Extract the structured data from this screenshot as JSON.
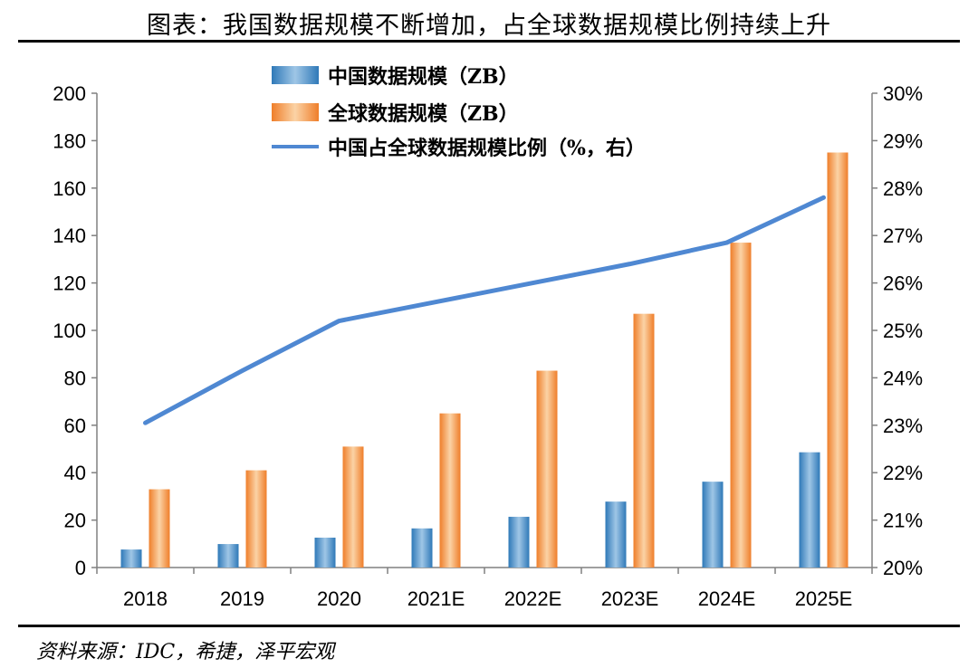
{
  "title": "图表：我国数据规模不断增加，占全球数据规模比例持续上升",
  "source": "资料来源：IDC，希捷，泽平宏观",
  "colors": {
    "china_bar_light": "#9fc6e6",
    "china_bar_dark": "#2f79b8",
    "global_bar_light": "#fbd3a6",
    "global_bar_dark": "#ef7e2a",
    "share_line": "#4f88d2",
    "axis": "#808080"
  },
  "chart_data": {
    "type": "bar",
    "categories": [
      "2018",
      "2019",
      "2020",
      "2021E",
      "2022E",
      "2023E",
      "2024E",
      "2025E"
    ],
    "series": [
      {
        "name": "中国数据规模（ZB）",
        "type": "bar",
        "axis": "left",
        "values": [
          7.6,
          9.9,
          12.6,
          16.5,
          21.4,
          27.8,
          36.2,
          48.6
        ]
      },
      {
        "name": "全球数据规模（ZB）",
        "type": "bar",
        "axis": "left",
        "values": [
          33,
          41,
          51,
          65,
          83,
          107,
          137,
          175
        ]
      },
      {
        "name": "中国占全球数据规模比例（%，右）",
        "type": "line",
        "axis": "right",
        "values": [
          23.05,
          24.15,
          25.2,
          25.6,
          26.0,
          26.4,
          26.85,
          27.8
        ]
      }
    ],
    "y_left": {
      "min": 0,
      "max": 200,
      "step": 20,
      "ticks": [
        "0",
        "20",
        "40",
        "60",
        "80",
        "100",
        "120",
        "140",
        "160",
        "180",
        "200"
      ]
    },
    "y_right": {
      "min": 20,
      "max": 30,
      "step": 1,
      "ticks": [
        "20%",
        "21%",
        "22%",
        "23%",
        "24%",
        "25%",
        "26%",
        "27%",
        "28%",
        "29%",
        "30%"
      ]
    },
    "grid": false,
    "legend_position": "top-center"
  }
}
